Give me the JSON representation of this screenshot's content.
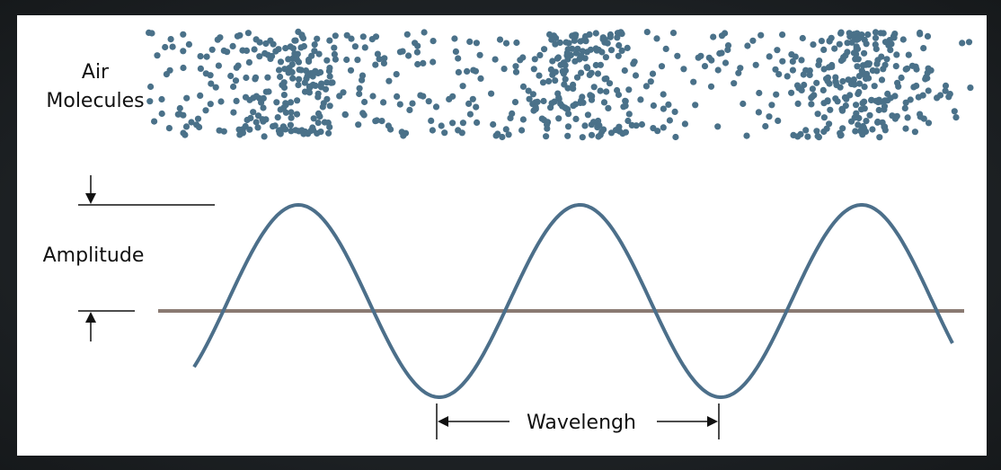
{
  "diagram": {
    "labels": {
      "air_molecules_line1": "Air",
      "air_molecules_line2": "Molecules",
      "amplitude": "Amplitude",
      "wavelength": "Wavelengh"
    },
    "colors": {
      "molecule": "#4a7189",
      "wave": "#4c6f8a",
      "baseline": "#8a7a72",
      "background_frame": "#1f2326",
      "panel": "#ffffff",
      "text": "#111111"
    },
    "wave_cycles": 3,
    "compression_zones": 3
  }
}
